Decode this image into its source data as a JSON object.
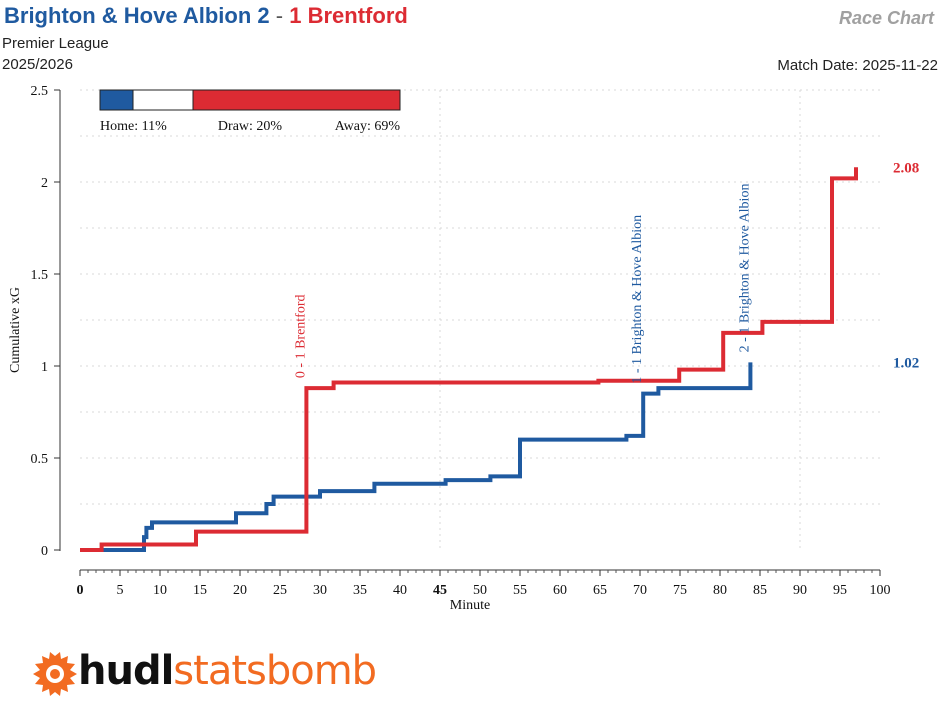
{
  "header": {
    "home_team": "Brighton & Hove Albion",
    "home_score": "2",
    "separator": "-",
    "away_score": "1",
    "away_team": "Brentford",
    "competition": "Premier League",
    "season": "2025/2026",
    "chart_label": "Race Chart",
    "match_date": "Match Date: 2025-11-22"
  },
  "colors": {
    "home": "#1f5aa0",
    "away": "#dc2b33",
    "grid": "#d9d9d9"
  },
  "probabilities": {
    "home_label": "Home: 11%",
    "draw_label": "Draw: 20%",
    "away_label": "Away: 69%",
    "home": 11,
    "draw": 20,
    "away": 69
  },
  "chart_data": {
    "type": "line",
    "title": "",
    "xlabel": "Minute",
    "ylabel": "Cumulative xG",
    "xlim": [
      0,
      100
    ],
    "ylim": [
      0,
      2.5
    ],
    "xticks": [
      0,
      5,
      10,
      15,
      20,
      25,
      30,
      35,
      40,
      45,
      50,
      55,
      60,
      65,
      70,
      75,
      80,
      85,
      90,
      95,
      100
    ],
    "yticks": [
      0,
      0.5,
      1,
      1.5,
      2,
      2.5
    ],
    "ytick_labels": [
      "0",
      "0.5",
      "1",
      "1.5",
      "2",
      "2.5"
    ],
    "grid": true,
    "series": [
      {
        "name": "Brighton & Hove Albion",
        "x": [
          0,
          8,
          8.3,
          9,
          19.5,
          23.3,
          24.2,
          30,
          36.8,
          45.7,
          51.3,
          55,
          68.3,
          70.4,
          72.3,
          83.8
        ],
        "y": [
          0,
          0.07,
          0.12,
          0.15,
          0.2,
          0.25,
          0.29,
          0.32,
          0.36,
          0.38,
          0.4,
          0.6,
          0.62,
          0.85,
          0.88,
          1.02
        ],
        "final_label": "1.02"
      },
      {
        "name": "Brentford",
        "x": [
          0,
          2.7,
          14.5,
          28.3,
          31.7,
          64.8,
          74.9,
          80.4,
          85.3,
          94,
          97
        ],
        "y": [
          0,
          0.03,
          0.1,
          0.88,
          0.91,
          0.92,
          0.98,
          1.18,
          1.24,
          2.02,
          2.08
        ],
        "final_label": "2.08"
      }
    ],
    "annotations": [
      {
        "minute": 28.3,
        "text": "0 - 1 Brentford",
        "team": "away"
      },
      {
        "minute": 70.4,
        "text": "1 - 1 Brighton & Hove Albion",
        "team": "home"
      },
      {
        "minute": 83.8,
        "text": "2 - 1 Brighton & Hove Albion",
        "team": "home"
      }
    ]
  },
  "branding": {
    "hudl": "hudl",
    "statsbomb": "statsbomb"
  }
}
